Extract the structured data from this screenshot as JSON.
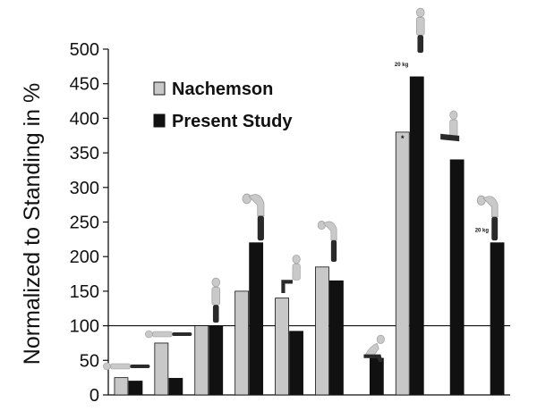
{
  "chart_data": {
    "type": "bar",
    "title": "",
    "xlabel": "",
    "ylabel": "Normalized to Standing in %",
    "ylim": [
      0,
      500
    ],
    "yticks": [
      0,
      50,
      100,
      150,
      200,
      250,
      300,
      350,
      400,
      450,
      500
    ],
    "reference_line": 100,
    "legend_position": "top-left",
    "categories": [
      "Lying supine",
      "Lying lateral",
      "Standing relaxed",
      "Standing bent forward",
      "Sitting relaxed",
      "Sitting bent forward",
      "Sitting slouched",
      "Lifting weight bent forward",
      "Bent forward twisted",
      "Lifting weight close to body"
    ],
    "series": [
      {
        "name": "Nachemson",
        "color": "#c8c8c8",
        "values": [
          25,
          75,
          100,
          150,
          140,
          185,
          null,
          380,
          null,
          null
        ]
      },
      {
        "name": "Present Study",
        "color": "#111111",
        "values": [
          20,
          24,
          100,
          220,
          92,
          165,
          53,
          460,
          340,
          220
        ]
      }
    ],
    "annotations": [
      {
        "text": "20 kg",
        "category": "Lifting weight bent forward"
      },
      {
        "text": "20 kg",
        "category": "Lifting weight close to body"
      },
      {
        "text": "*",
        "category": "Lifting weight bent forward",
        "series": "Nachemson"
      }
    ]
  }
}
